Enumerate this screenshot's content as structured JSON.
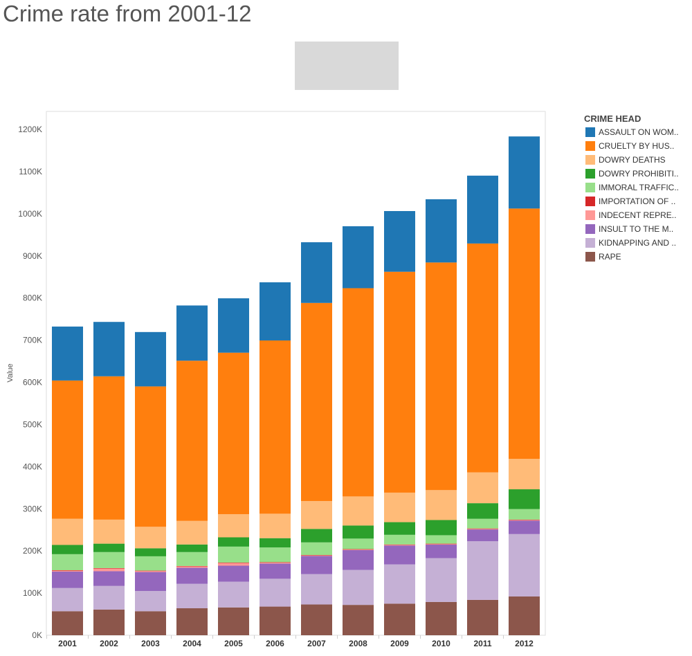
{
  "page": {
    "title": "Crime rate from 2001-12"
  },
  "chart_data": {
    "type": "bar",
    "stacked": true,
    "title": "Crime rate from 2001-12",
    "xlabel": "",
    "ylabel": "Value",
    "legend_title": "CRIME HEAD",
    "legend_position": "right",
    "grid": false,
    "ylim": [
      0,
      1250000
    ],
    "yticks": [
      "0K",
      "100K",
      "200K",
      "300K",
      "400K",
      "500K",
      "600K",
      "700K",
      "800K",
      "900K",
      "1000K",
      "1100K",
      "1200K"
    ],
    "categories": [
      "2001",
      "2002",
      "2003",
      "2004",
      "2005",
      "2006",
      "2007",
      "2008",
      "2009",
      "2010",
      "2011",
      "2012"
    ],
    "series": [
      {
        "name": "RAPE",
        "color": "#8c564b",
        "values": [
          57000,
          61000,
          57000,
          64000,
          66000,
          68000,
          73000,
          72000,
          75000,
          79000,
          84000,
          92000
        ]
      },
      {
        "name": "KIDNAPPING AND ..",
        "color": "#c5b0d5",
        "values": [
          55000,
          56000,
          48000,
          58000,
          61000,
          66000,
          72000,
          83000,
          93000,
          104000,
          139000,
          148000
        ]
      },
      {
        "name": "INSULT TO THE M..",
        "color": "#9467bd",
        "values": [
          39000,
          35000,
          45000,
          38000,
          38000,
          36000,
          43000,
          47000,
          45000,
          32000,
          28000,
          32000
        ]
      },
      {
        "name": "INDECENT REPRE..",
        "color": "#ff9896",
        "values": [
          3000,
          7000,
          3000,
          4000,
          7000,
          3000,
          2000,
          2000,
          2000,
          2000,
          2000,
          2000
        ]
      },
      {
        "name": "IMPORTATION OF ..",
        "color": "#d62728",
        "values": [
          300,
          300,
          300,
          300,
          300,
          300,
          300,
          300,
          300,
          300,
          300,
          300
        ]
      },
      {
        "name": "IMMORAL TRAFFIC..",
        "color": "#98df8a",
        "values": [
          38000,
          38000,
          34000,
          33000,
          38000,
          35000,
          30000,
          25000,
          23000,
          20000,
          23000,
          25000
        ]
      },
      {
        "name": "DOWRY PROHIBITI..",
        "color": "#2ca02c",
        "values": [
          22000,
          20000,
          19000,
          18000,
          22000,
          22000,
          32000,
          31000,
          30000,
          36000,
          37000,
          47000
        ]
      },
      {
        "name": "DOWRY DEATHS",
        "color": "#ffbb78",
        "values": [
          62000,
          57000,
          51000,
          56000,
          55000,
          58000,
          66000,
          69000,
          70000,
          71000,
          73000,
          72000
        ]
      },
      {
        "name": "CRUELTY BY HUS..",
        "color": "#ff7f0e",
        "values": [
          328000,
          340000,
          333000,
          380000,
          383000,
          411000,
          470000,
          494000,
          524000,
          540000,
          543000,
          594000
        ]
      },
      {
        "name": "ASSAULT ON WOM..",
        "color": "#1f77b4",
        "values": [
          128000,
          129000,
          129000,
          131000,
          129000,
          138000,
          144000,
          147000,
          144000,
          150000,
          161000,
          171000
        ]
      }
    ]
  }
}
